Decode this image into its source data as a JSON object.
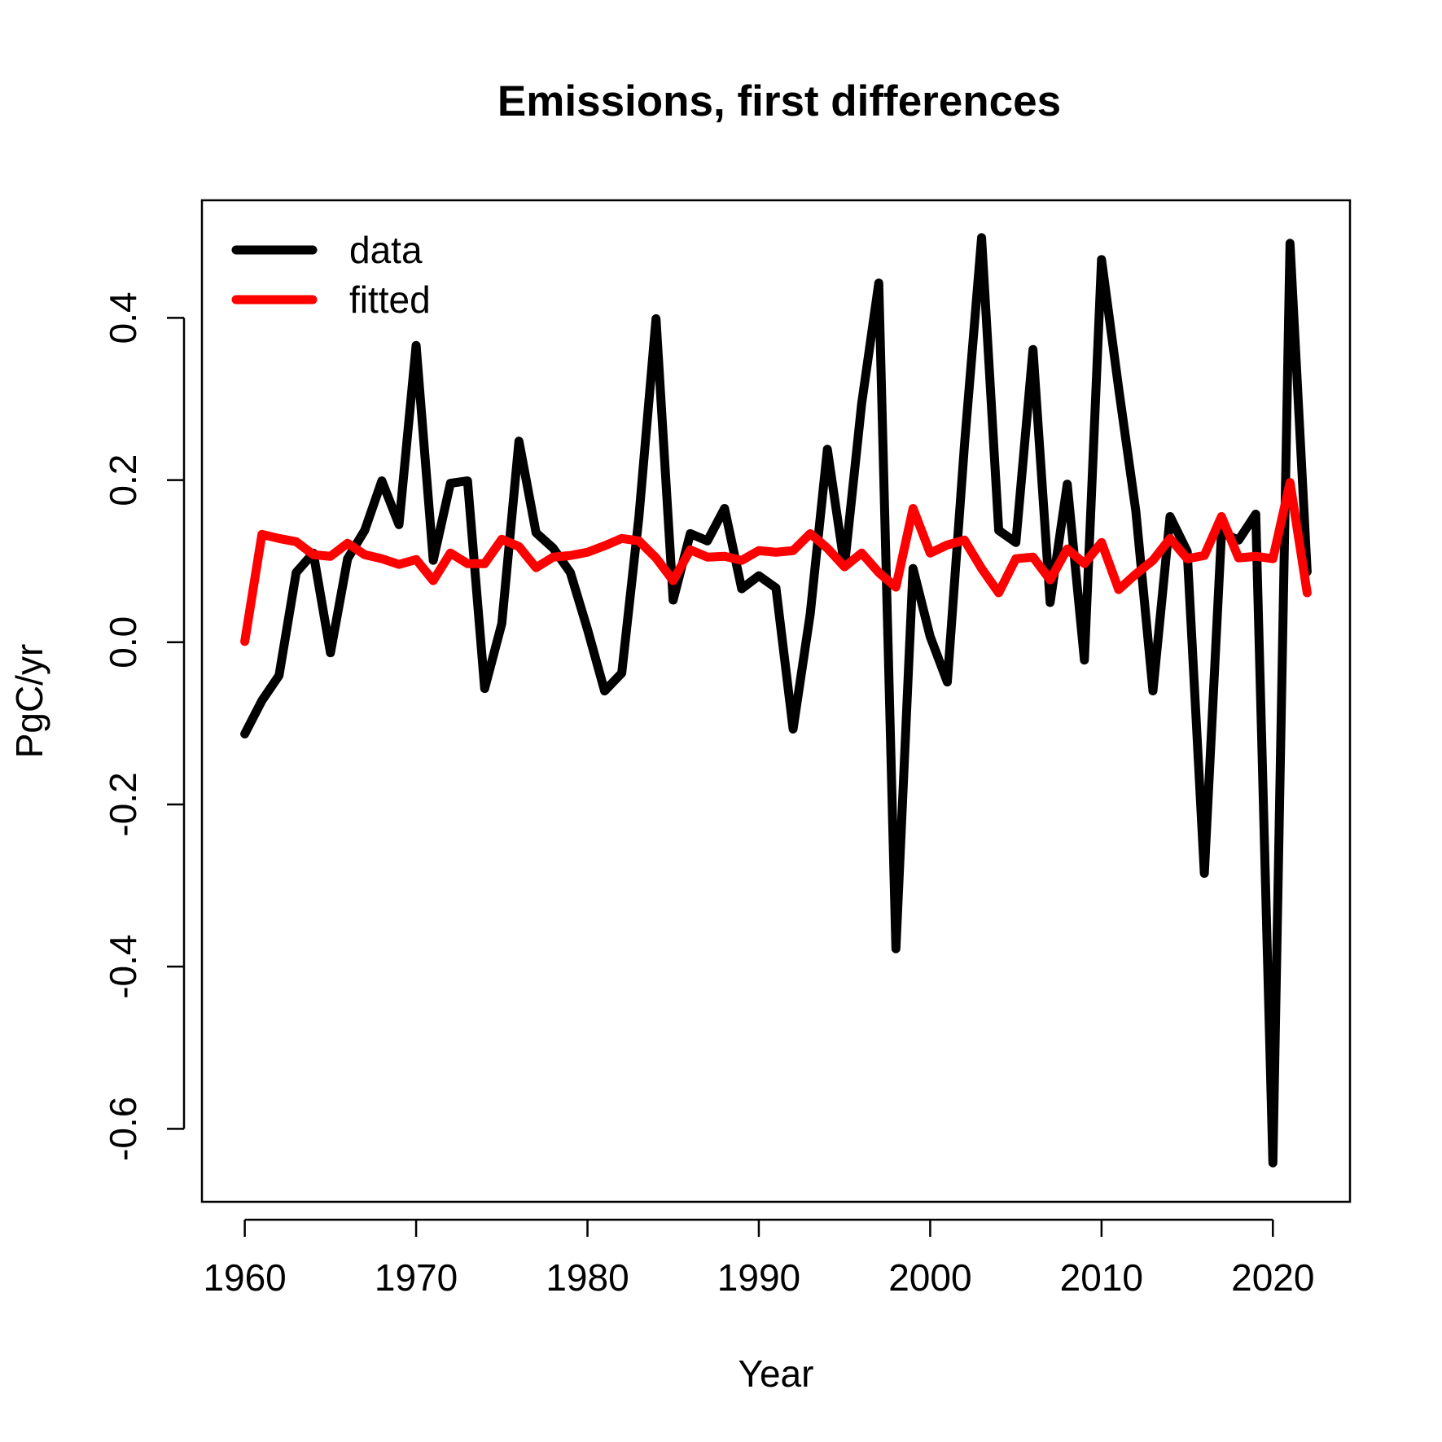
{
  "chart_data": {
    "type": "line",
    "title": "Emissions, first differences",
    "xlabel": "Year",
    "ylabel": "PgC/yr",
    "xlim": [
      1957.5,
      2024.5
    ],
    "ylim": [
      -0.69,
      0.545
    ],
    "x_ticks": [
      1960,
      1970,
      1980,
      1990,
      2000,
      2010,
      2020
    ],
    "x_tick_labels": [
      "1960",
      "1970",
      "1980",
      "1990",
      "2000",
      "2010",
      "2020"
    ],
    "y_ticks": [
      -0.6,
      -0.4,
      -0.2,
      0.0,
      0.2,
      0.4
    ],
    "y_tick_labels": [
      "-0.6",
      "-0.4",
      "-0.2",
      "0.0",
      "0.2",
      "0.4"
    ],
    "grid": false,
    "legend_position": "top-left",
    "x": [
      1960,
      1961,
      1962,
      1963,
      1964,
      1965,
      1966,
      1967,
      1968,
      1969,
      1970,
      1971,
      1972,
      1973,
      1974,
      1975,
      1976,
      1977,
      1978,
      1979,
      1980,
      1981,
      1982,
      1983,
      1984,
      1985,
      1986,
      1987,
      1988,
      1989,
      1990,
      1991,
      1992,
      1993,
      1994,
      1995,
      1996,
      1997,
      1998,
      1999,
      2000,
      2001,
      2002,
      2003,
      2004,
      2005,
      2006,
      2007,
      2008,
      2009,
      2010,
      2011,
      2012,
      2013,
      2014,
      2015,
      2016,
      2017,
      2018,
      2019,
      2020,
      2021,
      2022
    ],
    "series": [
      {
        "name": "data",
        "color": "#000000",
        "values": [
          -0.113,
          -0.072,
          -0.041,
          0.086,
          0.11,
          -0.013,
          0.103,
          0.138,
          0.199,
          0.145,
          0.366,
          0.101,
          0.196,
          0.199,
          -0.057,
          0.023,
          0.248,
          0.135,
          0.116,
          0.086,
          0.016,
          -0.06,
          -0.038,
          0.154,
          0.399,
          0.052,
          0.134,
          0.125,
          0.165,
          0.066,
          0.082,
          0.067,
          -0.107,
          0.035,
          0.238,
          0.094,
          0.294,
          0.443,
          -0.378,
          0.091,
          0.007,
          -0.049,
          0.243,
          0.499,
          0.138,
          0.123,
          0.361,
          0.049,
          0.195,
          -0.022,
          0.472,
          0.313,
          0.162,
          -0.06,
          0.155,
          0.112,
          -0.285,
          0.135,
          0.126,
          0.158,
          -0.642,
          0.492,
          0.087
        ]
      },
      {
        "name": "fitted",
        "color": "#ff0000",
        "values": [
          0.001,
          0.133,
          0.128,
          0.124,
          0.108,
          0.106,
          0.122,
          0.108,
          0.103,
          0.096,
          0.102,
          0.076,
          0.11,
          0.097,
          0.097,
          0.127,
          0.118,
          0.092,
          0.105,
          0.107,
          0.111,
          0.119,
          0.128,
          0.125,
          0.104,
          0.076,
          0.114,
          0.105,
          0.106,
          0.101,
          0.113,
          0.111,
          0.113,
          0.134,
          0.116,
          0.093,
          0.11,
          0.086,
          0.068,
          0.165,
          0.11,
          0.12,
          0.126,
          0.091,
          0.061,
          0.103,
          0.105,
          0.077,
          0.115,
          0.097,
          0.123,
          0.065,
          0.084,
          0.101,
          0.128,
          0.103,
          0.107,
          0.155,
          0.104,
          0.106,
          0.103,
          0.197,
          0.061
        ]
      }
    ]
  }
}
